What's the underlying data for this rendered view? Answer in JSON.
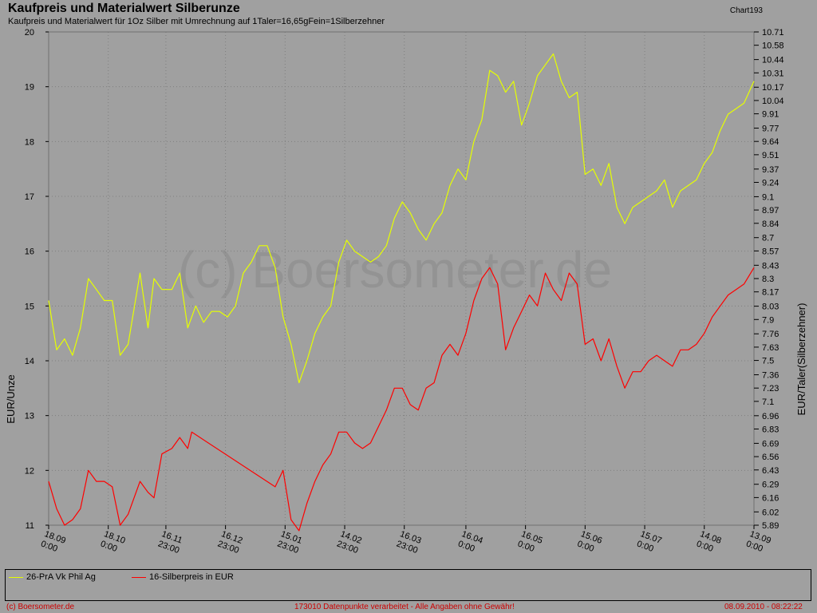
{
  "header": {
    "title": "Kaufpreis und Materialwert Silberunze",
    "subtitle": "Kaufpreis und Materialwert für 1Oz Silber mit Umrechnung auf 1Taler=16,65gFein=1Silberzehner",
    "chart_id": "Chart193"
  },
  "watermark": "(c) Boersometer.de",
  "footer": {
    "left": "(c) Boersometer.de",
    "center": "173010 Datenpunkte verarbeitet - Alle Angaben ohne Gewähr!",
    "right": "08.09.2010 - 08:22:22"
  },
  "colors": {
    "background": "#a0a0a0",
    "series_yellow": "#e6ff00",
    "series_red": "#ff0000",
    "grid": "#7f7f7f"
  },
  "chart_data": {
    "type": "line",
    "title": "Kaufpreis und Materialwert Silberunze",
    "ylabel": "EUR/Unze",
    "ylabel_right": "EUR/Taler(Silberzehner)",
    "ylim": [
      11,
      20
    ],
    "ylim_right": [
      5.89,
      10.71
    ],
    "grid": true,
    "legend_position": "bottom",
    "yticks_left": [
      "20",
      "19",
      "18",
      "17",
      "16",
      "15",
      "14",
      "13",
      "12",
      "11"
    ],
    "yticks_right": [
      "10.71",
      "10.58",
      "10.44",
      "10.31",
      "10.17",
      "10.04",
      "9.91",
      "9.77",
      "9.64",
      "9.51",
      "9.37",
      "9.24",
      "9.1",
      "8.97",
      "8.84",
      "8.7",
      "8.57",
      "8.43",
      "8.3",
      "8.17",
      "8.03",
      "7.9",
      "7.76",
      "7.63",
      "7.5",
      "7.36",
      "7.23",
      "7.1",
      "6.96",
      "6.83",
      "6.69",
      "6.56",
      "6.43",
      "6.29",
      "6.16",
      "6.02",
      "5.89"
    ],
    "xticks": [
      {
        "date": "18.09",
        "time": "0:00"
      },
      {
        "date": "18.10",
        "time": "0:00"
      },
      {
        "date": "16.11",
        "time": "23:00"
      },
      {
        "date": "16.12",
        "time": "23:00"
      },
      {
        "date": "15.01",
        "time": "23:00"
      },
      {
        "date": "14.02",
        "time": "23:00"
      },
      {
        "date": "16.03",
        "time": "23:00"
      },
      {
        "date": "16.04",
        "time": "0:00"
      },
      {
        "date": "16.05",
        "time": "0:00"
      },
      {
        "date": "15.06",
        "time": "0:00"
      },
      {
        "date": "15.07",
        "time": "0:00"
      },
      {
        "date": "14.08",
        "time": "0:00"
      },
      {
        "date": "13.09",
        "time": "0:00"
      }
    ],
    "x": [
      "2009-09-18",
      "2009-10-18",
      "2009-11-16",
      "2009-12-16",
      "2010-01-15",
      "2010-02-14",
      "2010-03-16",
      "2010-04-16",
      "2010-05-16",
      "2010-06-15",
      "2010-07-15",
      "2010-08-14",
      "2010-09-08"
    ],
    "series": [
      {
        "name": "26-PrA Vk Phil Ag",
        "color": "#e6ff00",
        "points": [
          [
            "2009-09-18",
            15.1
          ],
          [
            "2009-09-22",
            14.2
          ],
          [
            "2009-09-26",
            14.4
          ],
          [
            "2009-09-30",
            14.1
          ],
          [
            "2009-10-04",
            14.6
          ],
          [
            "2009-10-08",
            15.5
          ],
          [
            "2009-10-12",
            15.3
          ],
          [
            "2009-10-16",
            15.1
          ],
          [
            "2009-10-20",
            15.1
          ],
          [
            "2009-10-24",
            14.1
          ],
          [
            "2009-10-28",
            14.3
          ],
          [
            "2009-11-03",
            15.6
          ],
          [
            "2009-11-07",
            14.6
          ],
          [
            "2009-11-10",
            15.5
          ],
          [
            "2009-11-14",
            15.3
          ],
          [
            "2009-11-19",
            15.3
          ],
          [
            "2009-11-23",
            15.6
          ],
          [
            "2009-11-27",
            14.6
          ],
          [
            "2009-12-01",
            15.0
          ],
          [
            "2009-12-05",
            14.7
          ],
          [
            "2009-12-09",
            14.9
          ],
          [
            "2009-12-13",
            14.9
          ],
          [
            "2009-12-17",
            14.8
          ],
          [
            "2009-12-21",
            15.0
          ],
          [
            "2009-12-25",
            15.6
          ],
          [
            "2009-12-29",
            15.8
          ],
          [
            "2010-01-02",
            16.1
          ],
          [
            "2010-01-06",
            16.1
          ],
          [
            "2010-01-10",
            15.7
          ],
          [
            "2010-01-14",
            14.8
          ],
          [
            "2010-01-18",
            14.3
          ],
          [
            "2010-01-22",
            13.6
          ],
          [
            "2010-01-26",
            14.0
          ],
          [
            "2010-01-30",
            14.5
          ],
          [
            "2010-02-03",
            14.8
          ],
          [
            "2010-02-07",
            15.0
          ],
          [
            "2010-02-11",
            15.8
          ],
          [
            "2010-02-15",
            16.2
          ],
          [
            "2010-02-19",
            16.0
          ],
          [
            "2010-02-23",
            15.9
          ],
          [
            "2010-02-27",
            15.8
          ],
          [
            "2010-03-03",
            15.9
          ],
          [
            "2010-03-07",
            16.1
          ],
          [
            "2010-03-11",
            16.6
          ],
          [
            "2010-03-15",
            16.9
          ],
          [
            "2010-03-19",
            16.7
          ],
          [
            "2010-03-23",
            16.4
          ],
          [
            "2010-03-27",
            16.2
          ],
          [
            "2010-03-31",
            16.5
          ],
          [
            "2010-04-04",
            16.7
          ],
          [
            "2010-04-08",
            17.2
          ],
          [
            "2010-04-12",
            17.5
          ],
          [
            "2010-04-16",
            17.3
          ],
          [
            "2010-04-20",
            18.0
          ],
          [
            "2010-04-24",
            18.4
          ],
          [
            "2010-04-28",
            19.3
          ],
          [
            "2010-05-02",
            19.2
          ],
          [
            "2010-05-06",
            18.9
          ],
          [
            "2010-05-10",
            19.1
          ],
          [
            "2010-05-14",
            18.3
          ],
          [
            "2010-05-18",
            18.7
          ],
          [
            "2010-05-22",
            19.2
          ],
          [
            "2010-05-26",
            19.4
          ],
          [
            "2010-05-30",
            19.6
          ],
          [
            "2010-06-03",
            19.1
          ],
          [
            "2010-06-07",
            18.8
          ],
          [
            "2010-06-11",
            18.9
          ],
          [
            "2010-06-15",
            17.4
          ],
          [
            "2010-06-19",
            17.5
          ],
          [
            "2010-06-23",
            17.2
          ],
          [
            "2010-06-27",
            17.6
          ],
          [
            "2010-07-01",
            16.8
          ],
          [
            "2010-07-05",
            16.5
          ],
          [
            "2010-07-09",
            16.8
          ],
          [
            "2010-07-13",
            16.9
          ],
          [
            "2010-07-17",
            17.0
          ],
          [
            "2010-07-21",
            17.1
          ],
          [
            "2010-07-25",
            17.3
          ],
          [
            "2010-07-29",
            16.8
          ],
          [
            "2010-08-02",
            17.1
          ],
          [
            "2010-08-06",
            17.2
          ],
          [
            "2010-08-10",
            17.3
          ],
          [
            "2010-08-14",
            17.6
          ],
          [
            "2010-08-18",
            17.8
          ],
          [
            "2010-08-22",
            18.2
          ],
          [
            "2010-08-26",
            18.5
          ],
          [
            "2010-08-30",
            18.6
          ],
          [
            "2010-09-03",
            18.7
          ],
          [
            "2010-09-08",
            19.1
          ]
        ]
      },
      {
        "name": "16-Silberpreis in EUR",
        "color": "#ff0000",
        "points": [
          [
            "2009-09-18",
            11.8
          ],
          [
            "2009-09-22",
            11.3
          ],
          [
            "2009-09-26",
            11.0
          ],
          [
            "2009-09-30",
            11.1
          ],
          [
            "2009-10-04",
            11.3
          ],
          [
            "2009-10-08",
            12.0
          ],
          [
            "2009-10-12",
            11.8
          ],
          [
            "2009-10-16",
            11.8
          ],
          [
            "2009-10-20",
            11.7
          ],
          [
            "2009-10-24",
            11.0
          ],
          [
            "2009-10-28",
            11.2
          ],
          [
            "2009-11-03",
            11.8
          ],
          [
            "2009-11-07",
            11.6
          ],
          [
            "2009-11-10",
            11.5
          ],
          [
            "2009-11-14",
            12.3
          ],
          [
            "2009-11-19",
            12.4
          ],
          [
            "2009-11-23",
            12.6
          ],
          [
            "2009-11-27",
            12.4
          ],
          [
            "2009-11-29",
            12.7
          ],
          [
            "2010-01-10",
            11.7
          ],
          [
            "2010-01-14",
            12.0
          ],
          [
            "2010-01-18",
            11.1
          ],
          [
            "2010-01-22",
            10.9
          ],
          [
            "2010-01-26",
            11.4
          ],
          [
            "2010-01-30",
            11.8
          ],
          [
            "2010-02-03",
            12.1
          ],
          [
            "2010-02-07",
            12.3
          ],
          [
            "2010-02-11",
            12.7
          ],
          [
            "2010-02-15",
            12.7
          ],
          [
            "2010-02-19",
            12.5
          ],
          [
            "2010-02-23",
            12.4
          ],
          [
            "2010-02-27",
            12.5
          ],
          [
            "2010-03-03",
            12.8
          ],
          [
            "2010-03-07",
            13.1
          ],
          [
            "2010-03-11",
            13.5
          ],
          [
            "2010-03-15",
            13.5
          ],
          [
            "2010-03-19",
            13.2
          ],
          [
            "2010-03-23",
            13.1
          ],
          [
            "2010-03-27",
            13.5
          ],
          [
            "2010-03-31",
            13.6
          ],
          [
            "2010-04-04",
            14.1
          ],
          [
            "2010-04-08",
            14.3
          ],
          [
            "2010-04-12",
            14.1
          ],
          [
            "2010-04-16",
            14.5
          ],
          [
            "2010-04-20",
            15.1
          ],
          [
            "2010-04-24",
            15.5
          ],
          [
            "2010-04-28",
            15.7
          ],
          [
            "2010-05-02",
            15.4
          ],
          [
            "2010-05-06",
            14.2
          ],
          [
            "2010-05-10",
            14.6
          ],
          [
            "2010-05-14",
            14.9
          ],
          [
            "2010-05-18",
            15.2
          ],
          [
            "2010-05-22",
            15.0
          ],
          [
            "2010-05-26",
            15.6
          ],
          [
            "2010-05-30",
            15.3
          ],
          [
            "2010-06-03",
            15.1
          ],
          [
            "2010-06-07",
            15.6
          ],
          [
            "2010-06-11",
            15.4
          ],
          [
            "2010-06-15",
            14.3
          ],
          [
            "2010-06-19",
            14.4
          ],
          [
            "2010-06-23",
            14.0
          ],
          [
            "2010-06-27",
            14.4
          ],
          [
            "2010-07-01",
            13.9
          ],
          [
            "2010-07-05",
            13.5
          ],
          [
            "2010-07-09",
            13.8
          ],
          [
            "2010-07-13",
            13.8
          ],
          [
            "2010-07-17",
            14.0
          ],
          [
            "2010-07-21",
            14.1
          ],
          [
            "2010-07-25",
            14.0
          ],
          [
            "2010-07-29",
            13.9
          ],
          [
            "2010-08-02",
            14.2
          ],
          [
            "2010-08-06",
            14.2
          ],
          [
            "2010-08-10",
            14.3
          ],
          [
            "2010-08-14",
            14.5
          ],
          [
            "2010-08-18",
            14.8
          ],
          [
            "2010-08-22",
            15.0
          ],
          [
            "2010-08-26",
            15.2
          ],
          [
            "2010-08-30",
            15.3
          ],
          [
            "2010-09-03",
            15.4
          ],
          [
            "2010-09-08",
            15.7
          ]
        ]
      }
    ]
  }
}
